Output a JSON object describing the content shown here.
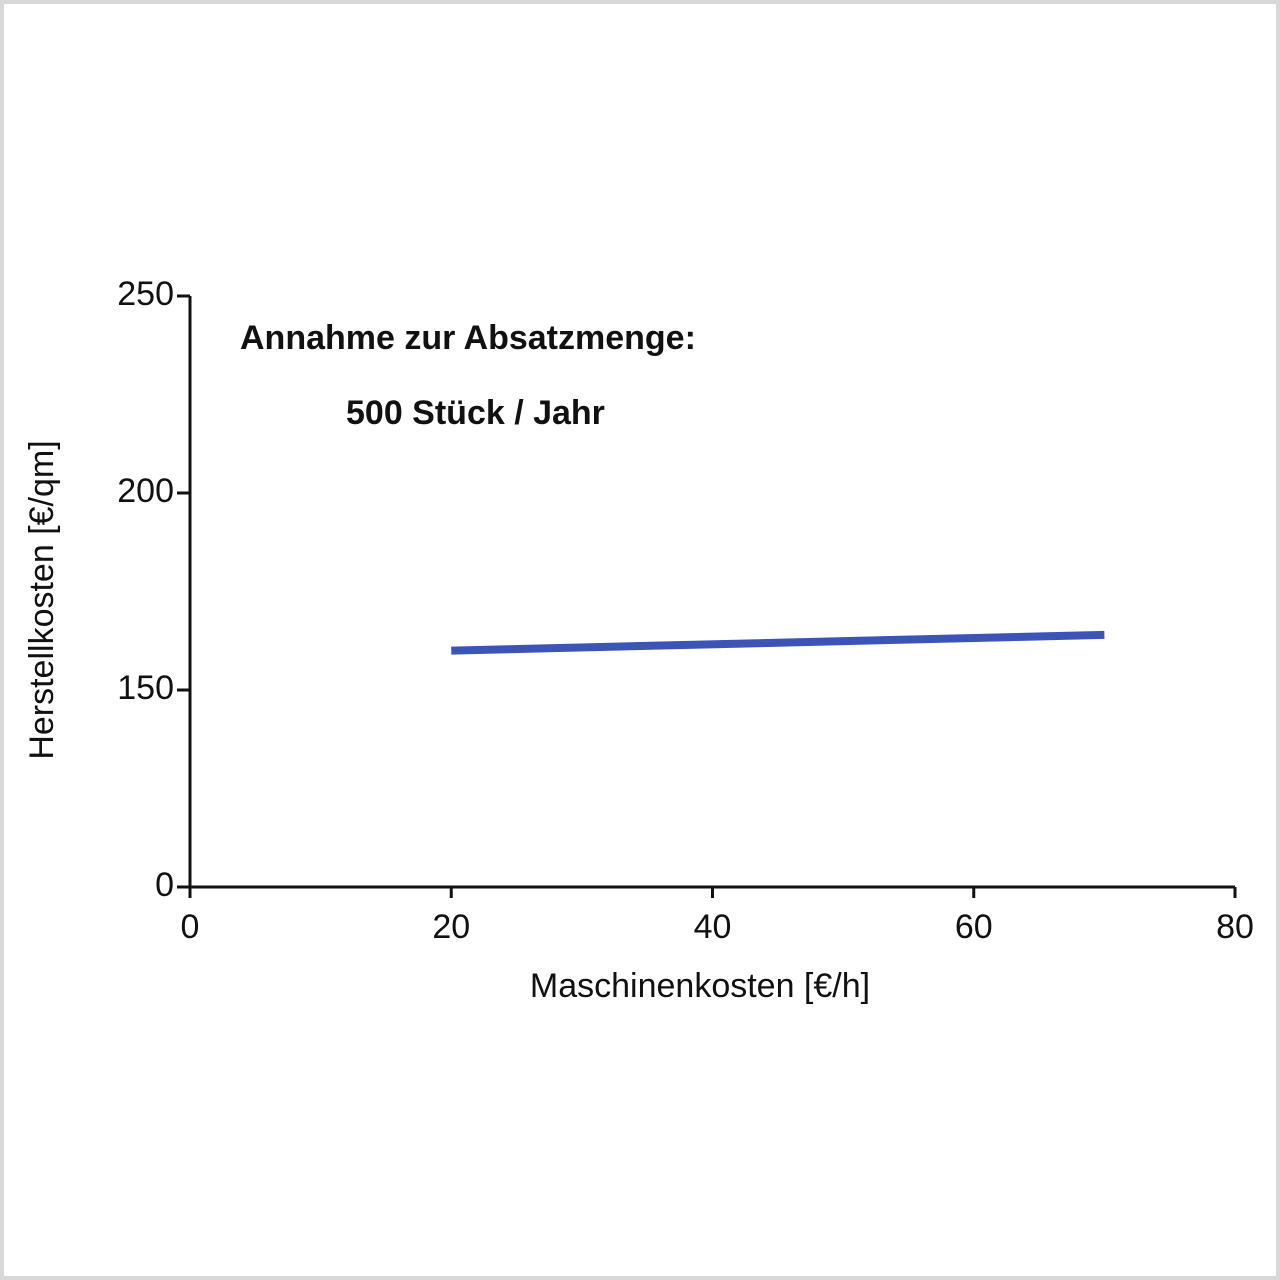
{
  "chart_data": {
    "type": "line",
    "annotations": [
      "Annahme zur Absatzmenge:",
      "500 Stück / Jahr"
    ],
    "xlabel": "Maschinenkosten   [€/h]",
    "ylabel": "Herstellkosten   [€/qm]",
    "x": [
      20,
      70
    ],
    "series": [
      {
        "color": "#3b54b5",
        "values": [
          160,
          164
        ]
      }
    ],
    "xlim": [
      0,
      80
    ],
    "xticks": [
      0,
      20,
      40,
      60,
      80
    ],
    "ylim": [
      0,
      250
    ],
    "yticks": [
      0,
      150,
      200,
      250
    ],
    "grid": false
  }
}
